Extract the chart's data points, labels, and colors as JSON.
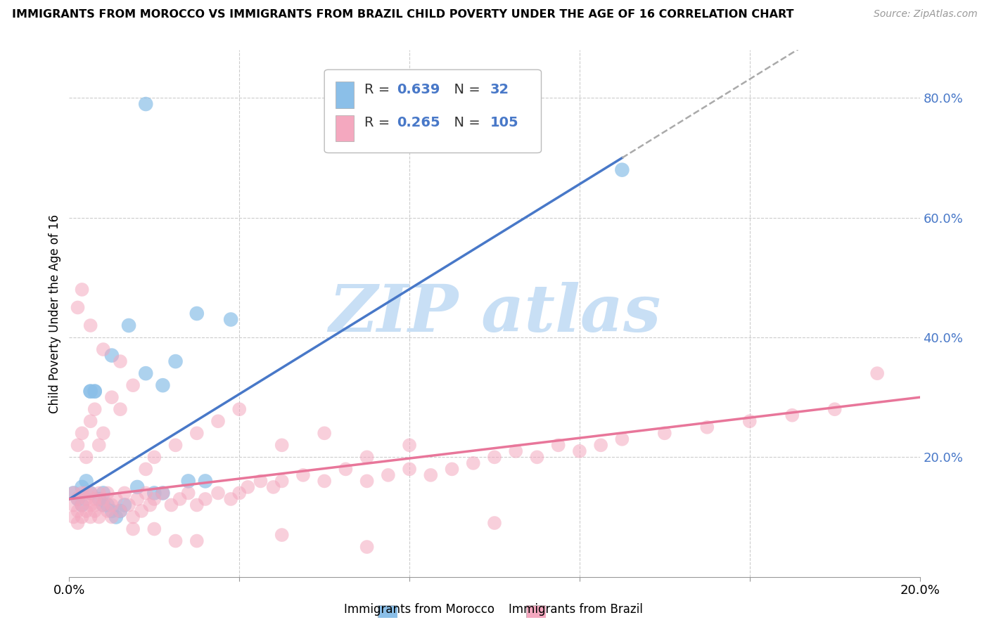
{
  "title": "IMMIGRANTS FROM MOROCCO VS IMMIGRANTS FROM BRAZIL CHILD POVERTY UNDER THE AGE OF 16 CORRELATION CHART",
  "source": "Source: ZipAtlas.com",
  "ylabel": "Child Poverty Under the Age of 16",
  "xlim": [
    0.0,
    0.2
  ],
  "ylim": [
    0.0,
    0.88
  ],
  "xtick_vals": [
    0.0,
    0.04,
    0.08,
    0.12,
    0.16,
    0.2
  ],
  "xtick_labels": [
    "0.0%",
    "",
    "",
    "",
    "",
    "20.0%"
  ],
  "ytick_vals_right": [
    0.2,
    0.4,
    0.6,
    0.8
  ],
  "ytick_labels_right": [
    "20.0%",
    "40.0%",
    "60.0%",
    "80.0%"
  ],
  "morocco_color": "#8bbfe8",
  "brazil_color": "#f4a8bf",
  "morocco_line_color": "#4878c8",
  "brazil_line_color": "#e8769a",
  "dash_color": "#aaaaaa",
  "morocco_R": 0.639,
  "morocco_N": 32,
  "brazil_R": 0.265,
  "brazil_N": 105,
  "legend_blue_color": "#4878c8",
  "legend_dark_color": "#333333",
  "watermark_color": "#c8dff5",
  "background_color": "#ffffff",
  "grid_color": "#cccccc",
  "right_axis_color": "#4878c8",
  "morocco_x": [
    0.001,
    0.002,
    0.003,
    0.003,
    0.004,
    0.005,
    0.005,
    0.006,
    0.007,
    0.008,
    0.009,
    0.01,
    0.011,
    0.012,
    0.013,
    0.014,
    0.016,
    0.018,
    0.02,
    0.022,
    0.025,
    0.028,
    0.032,
    0.038,
    0.005,
    0.006,
    0.008,
    0.01,
    0.022,
    0.03,
    0.13,
    0.018
  ],
  "morocco_y": [
    0.14,
    0.13,
    0.12,
    0.15,
    0.16,
    0.14,
    0.31,
    0.31,
    0.13,
    0.12,
    0.12,
    0.11,
    0.1,
    0.11,
    0.12,
    0.42,
    0.15,
    0.34,
    0.14,
    0.14,
    0.36,
    0.16,
    0.16,
    0.43,
    0.31,
    0.31,
    0.14,
    0.37,
    0.32,
    0.44,
    0.68,
    0.79
  ],
  "brazil_x": [
    0.001,
    0.001,
    0.001,
    0.002,
    0.002,
    0.002,
    0.003,
    0.003,
    0.003,
    0.004,
    0.004,
    0.005,
    0.005,
    0.005,
    0.006,
    0.006,
    0.007,
    0.007,
    0.008,
    0.008,
    0.009,
    0.009,
    0.01,
    0.011,
    0.012,
    0.013,
    0.014,
    0.015,
    0.016,
    0.017,
    0.018,
    0.019,
    0.02,
    0.022,
    0.024,
    0.026,
    0.028,
    0.03,
    0.032,
    0.035,
    0.038,
    0.04,
    0.042,
    0.045,
    0.048,
    0.05,
    0.055,
    0.06,
    0.065,
    0.07,
    0.075,
    0.08,
    0.085,
    0.09,
    0.095,
    0.1,
    0.105,
    0.11,
    0.115,
    0.12,
    0.125,
    0.13,
    0.14,
    0.15,
    0.16,
    0.17,
    0.18,
    0.19,
    0.002,
    0.003,
    0.004,
    0.005,
    0.006,
    0.007,
    0.008,
    0.01,
    0.012,
    0.015,
    0.018,
    0.02,
    0.025,
    0.03,
    0.035,
    0.04,
    0.05,
    0.06,
    0.07,
    0.08,
    0.002,
    0.003,
    0.005,
    0.008,
    0.012,
    0.02,
    0.03,
    0.05,
    0.07,
    0.1,
    0.004,
    0.006,
    0.01,
    0.015,
    0.025
  ],
  "brazil_y": [
    0.14,
    0.12,
    0.1,
    0.13,
    0.11,
    0.09,
    0.12,
    0.14,
    0.1,
    0.13,
    0.11,
    0.12,
    0.14,
    0.1,
    0.13,
    0.11,
    0.14,
    0.1,
    0.13,
    0.12,
    0.11,
    0.14,
    0.12,
    0.13,
    0.11,
    0.14,
    0.12,
    0.1,
    0.13,
    0.11,
    0.14,
    0.12,
    0.13,
    0.14,
    0.12,
    0.13,
    0.14,
    0.12,
    0.13,
    0.14,
    0.13,
    0.14,
    0.15,
    0.16,
    0.15,
    0.16,
    0.17,
    0.16,
    0.18,
    0.16,
    0.17,
    0.18,
    0.17,
    0.18,
    0.19,
    0.2,
    0.21,
    0.2,
    0.22,
    0.21,
    0.22,
    0.23,
    0.24,
    0.25,
    0.26,
    0.27,
    0.28,
    0.34,
    0.22,
    0.24,
    0.2,
    0.26,
    0.28,
    0.22,
    0.24,
    0.3,
    0.28,
    0.32,
    0.18,
    0.2,
    0.22,
    0.24,
    0.26,
    0.28,
    0.22,
    0.24,
    0.2,
    0.22,
    0.45,
    0.48,
    0.42,
    0.38,
    0.36,
    0.08,
    0.06,
    0.07,
    0.05,
    0.09,
    0.14,
    0.12,
    0.1,
    0.08,
    0.06
  ]
}
